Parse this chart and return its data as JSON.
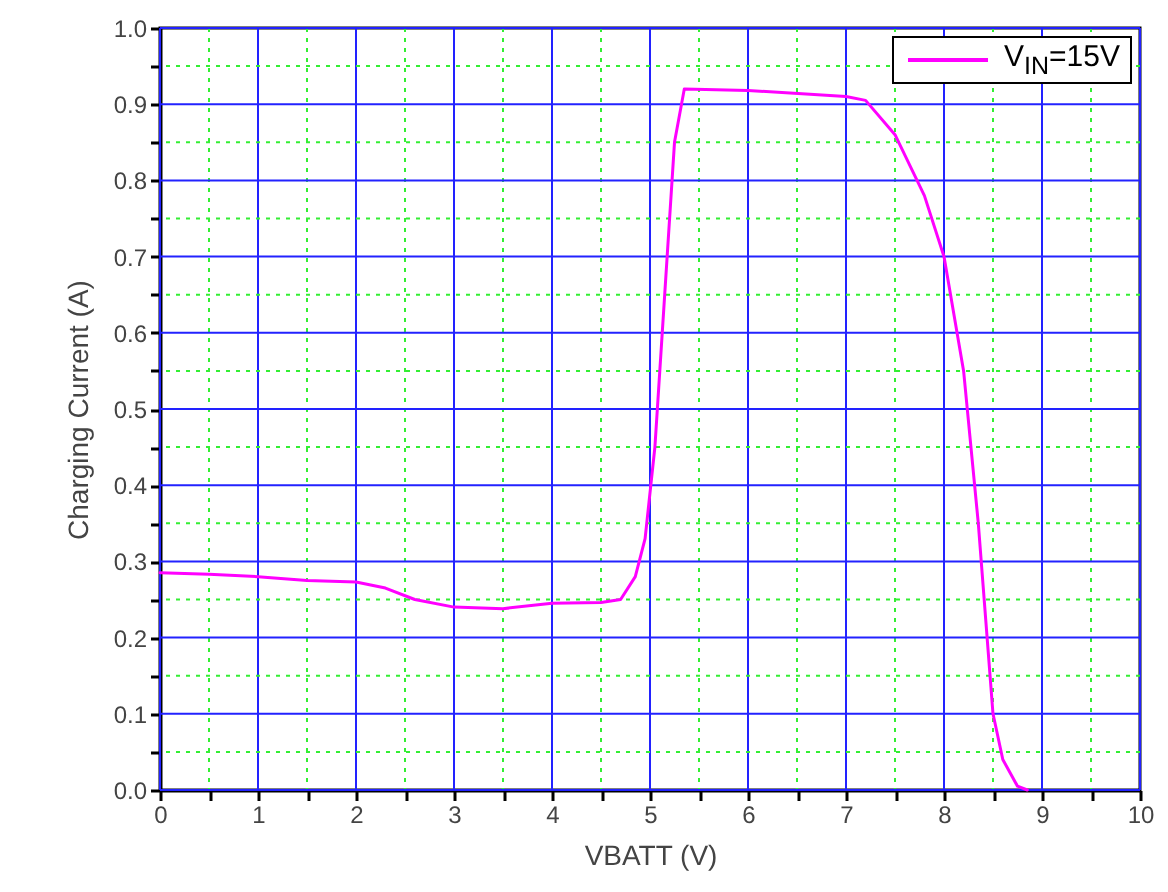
{
  "chart_data": {
    "type": "line",
    "xlabel": "VBATT (V)",
    "ylabel": "Charging Current (A)",
    "x": [
      0,
      0.5,
      1,
      1.5,
      2,
      2.3,
      2.6,
      3,
      3.5,
      4,
      4.5,
      4.7,
      4.85,
      4.95,
      5.05,
      5.15,
      5.25,
      5.35,
      6,
      7,
      7.2,
      7.5,
      7.8,
      8,
      8.2,
      8.35,
      8.5,
      8.6,
      8.75,
      8.85
    ],
    "series": [
      {
        "name": "V$_{IN}$=15V",
        "color": "#ff00ff",
        "values": [
          0.285,
          0.283,
          0.28,
          0.275,
          0.273,
          0.265,
          0.25,
          0.24,
          0.238,
          0.245,
          0.246,
          0.25,
          0.28,
          0.33,
          0.45,
          0.65,
          0.85,
          0.92,
          0.918,
          0.91,
          0.905,
          0.86,
          0.78,
          0.7,
          0.55,
          0.35,
          0.1,
          0.04,
          0.005,
          0
        ]
      }
    ],
    "xlim": [
      0,
      10
    ],
    "xticks": [
      0,
      {
        "value": 0.5,
        "label": null
      },
      1,
      {
        "value": 1.5,
        "label": null
      },
      2,
      {
        "value": 2.5,
        "label": null
      },
      3,
      {
        "value": 3.5,
        "label": null
      },
      4,
      {
        "value": 4.5,
        "label": null
      },
      5,
      {
        "value": 5.5,
        "label": null
      },
      6,
      {
        "value": 6.5,
        "label": null
      },
      7,
      {
        "value": 7.5,
        "label": null
      },
      8,
      {
        "value": 8.5,
        "label": null
      },
      9,
      {
        "value": 9.5,
        "label": null
      },
      10
    ],
    "ylim": [
      0,
      1
    ],
    "yticks": [
      {
        "value": 0,
        "label": "0.0"
      },
      {
        "value": 0.05,
        "label": null
      },
      0.1,
      {
        "value": 0.15,
        "label": null
      },
      0.2,
      {
        "value": 0.25,
        "label": null
      },
      0.3,
      {
        "value": 0.35,
        "label": null
      },
      0.4,
      {
        "value": 0.45,
        "label": null
      },
      0.5,
      {
        "value": 0.55,
        "label": null
      },
      0.6,
      {
        "value": 0.65,
        "label": null
      },
      0.7,
      {
        "value": 0.75,
        "label": null
      },
      0.8,
      {
        "value": 0.85,
        "label": null
      },
      0.9,
      {
        "value": 0.95,
        "label": null
      },
      {
        "value": 1,
        "label": "1.0"
      }
    ],
    "grid": true,
    "legend": "top right",
    "marker": "none",
    "line_style": "solid"
  }
}
